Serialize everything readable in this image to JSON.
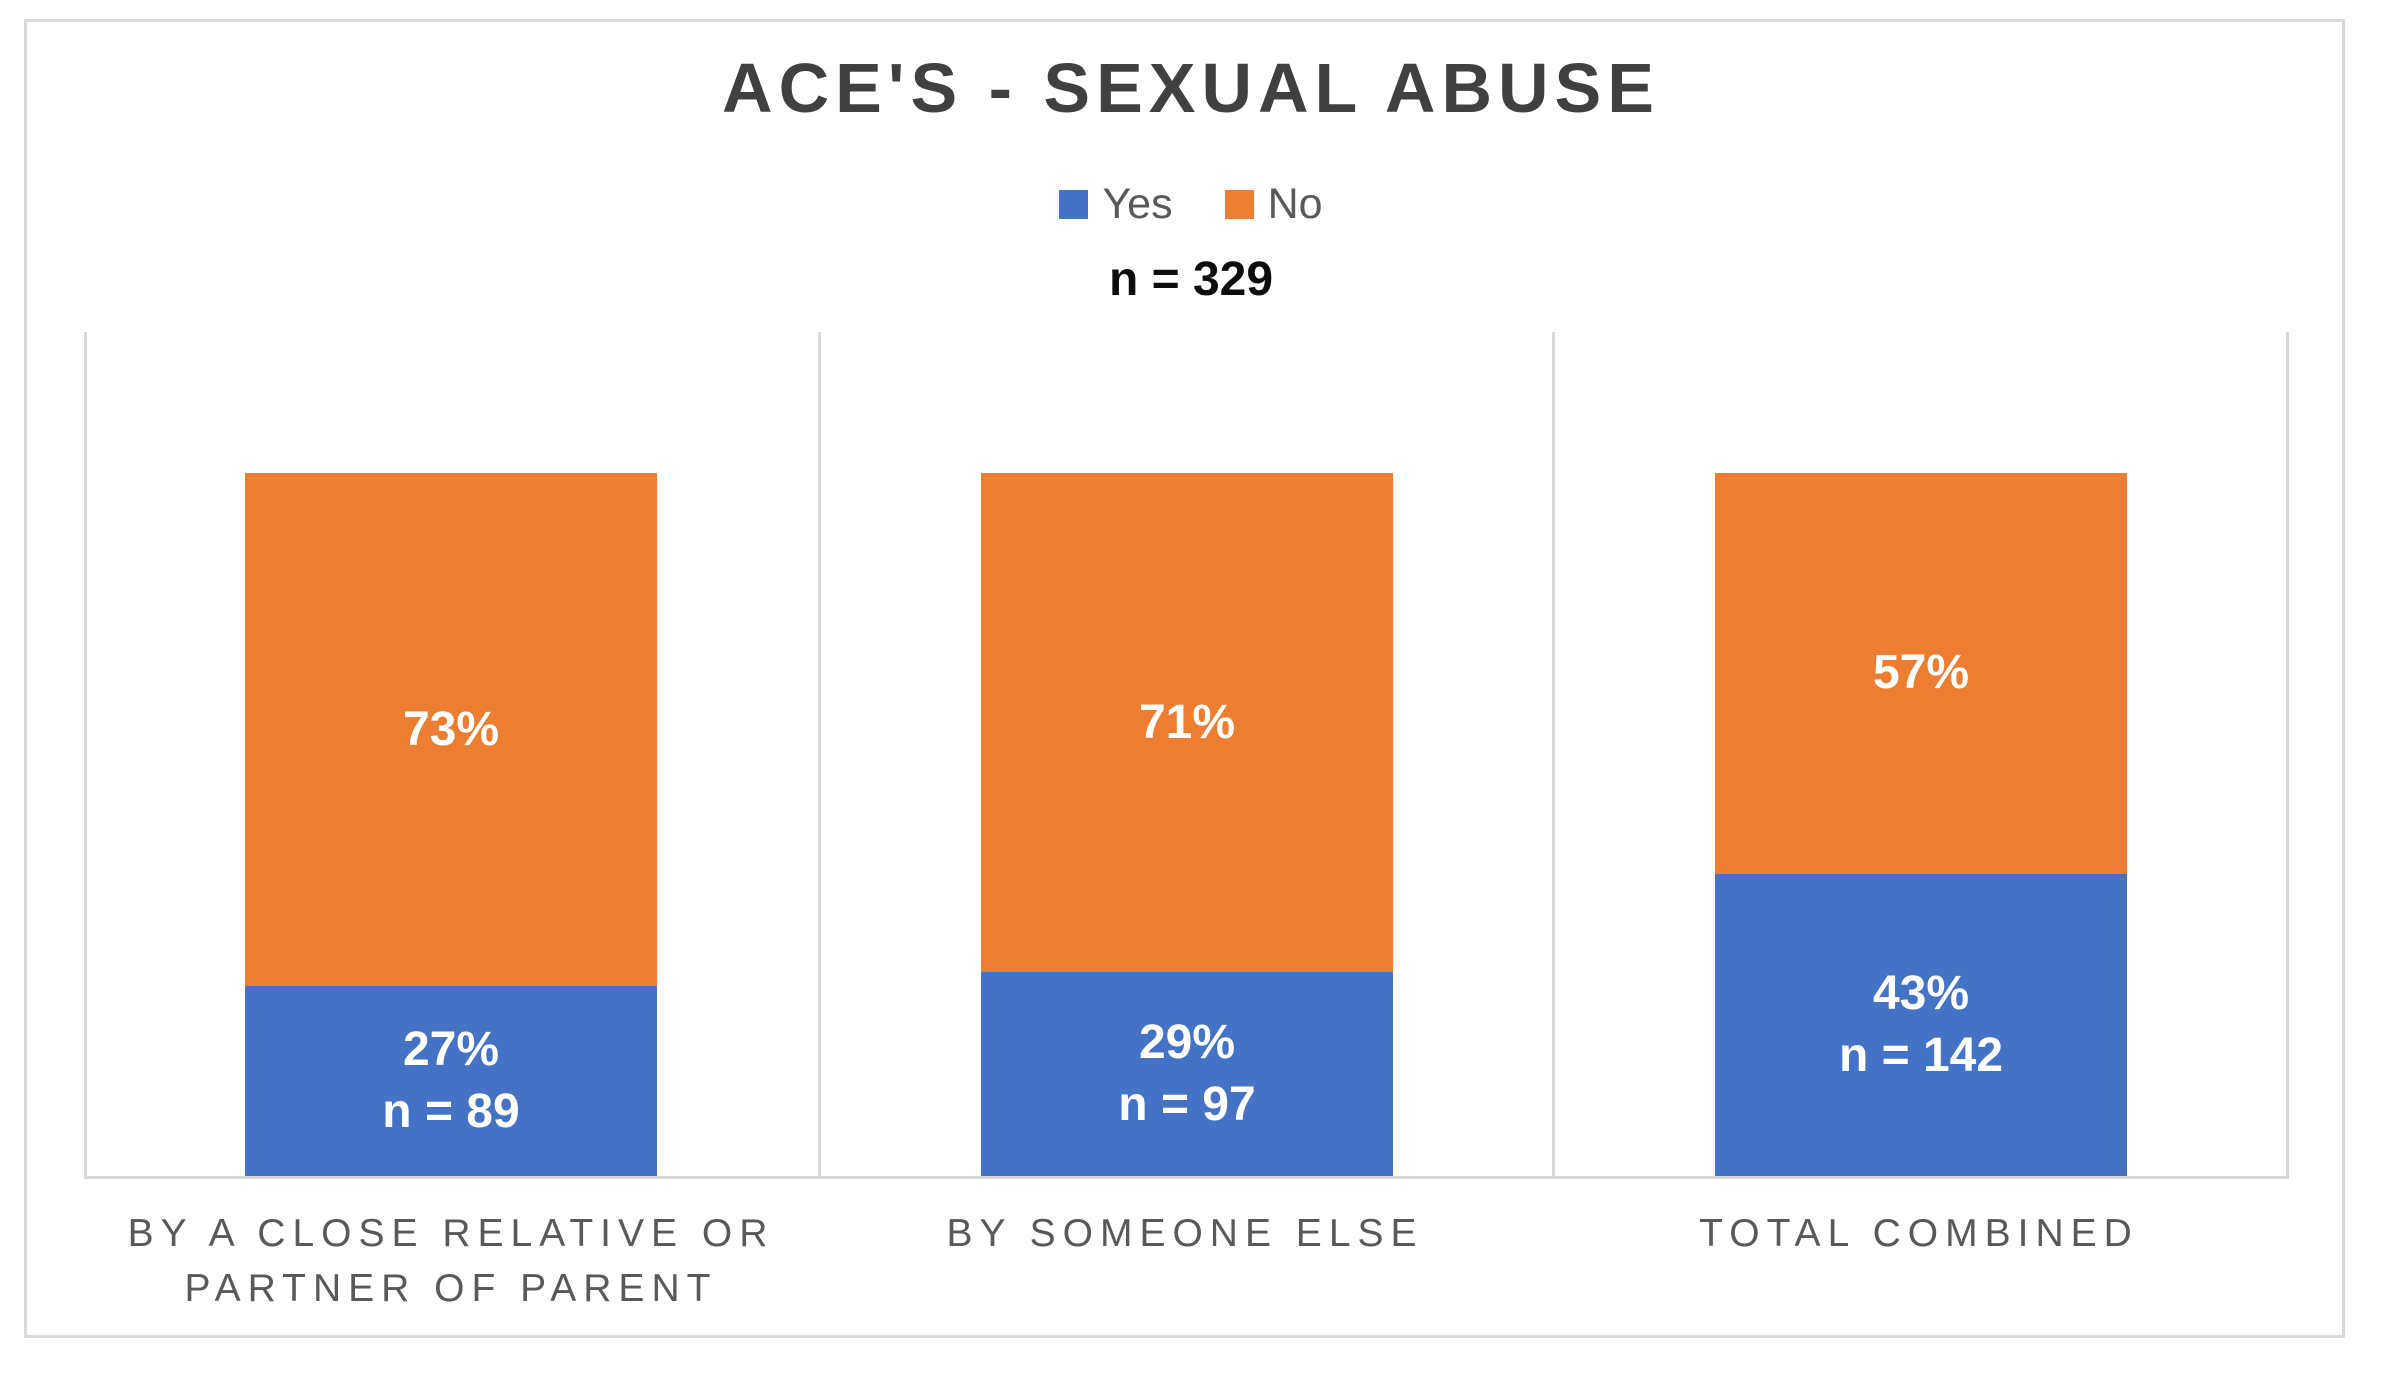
{
  "colors": {
    "yes_series": "#4472C4",
    "no_series": "#ED7D31",
    "chart_border": "#D9D9D9",
    "axis_lines": "#D9D9D9",
    "title_text": "#404040",
    "category_text": "#595959",
    "legend_text": "#595959",
    "subtitle_text": "#0D0D0D",
    "data_label_text": "#FFFFFF"
  },
  "chart_data": {
    "type": "bar",
    "variant": "100%-stacked-columns",
    "title": "ACE'S - SEXUAL ABUSE",
    "sample_size_label": "n = 329",
    "total_n": 329,
    "legend_position": "top-center",
    "grid": "vertical panel separator lines and bottom baseline only, no y-axis ticks",
    "ylim": [
      0,
      100
    ],
    "categories": [
      "BY A CLOSE RELATIVE OR PARTNER OF PARENT",
      "BY SOMEONE ELSE",
      "TOTAL COMBINED"
    ],
    "series": [
      {
        "name": "Yes",
        "color": "#4472C4",
        "values": [
          27,
          29,
          43
        ],
        "counts": [
          89,
          97,
          142
        ]
      },
      {
        "name": "No",
        "color": "#ED7D31",
        "values": [
          73,
          71,
          57
        ]
      }
    ],
    "bars": [
      {
        "category_lines": [
          "BY A CLOSE RELATIVE OR",
          "PARTNER OF PARENT"
        ],
        "no_pct_label": "73%",
        "yes_pct_label": "27%",
        "yes_n_label": "n = 89"
      },
      {
        "category_lines": [
          "BY SOMEONE ELSE"
        ],
        "no_pct_label": "71%",
        "yes_pct_label": "29%",
        "yes_n_label": "n = 97"
      },
      {
        "category_lines": [
          "TOTAL COMBINED"
        ],
        "no_pct_label": "57%",
        "yes_pct_label": "43%",
        "yes_n_label": "n = 142"
      }
    ]
  }
}
